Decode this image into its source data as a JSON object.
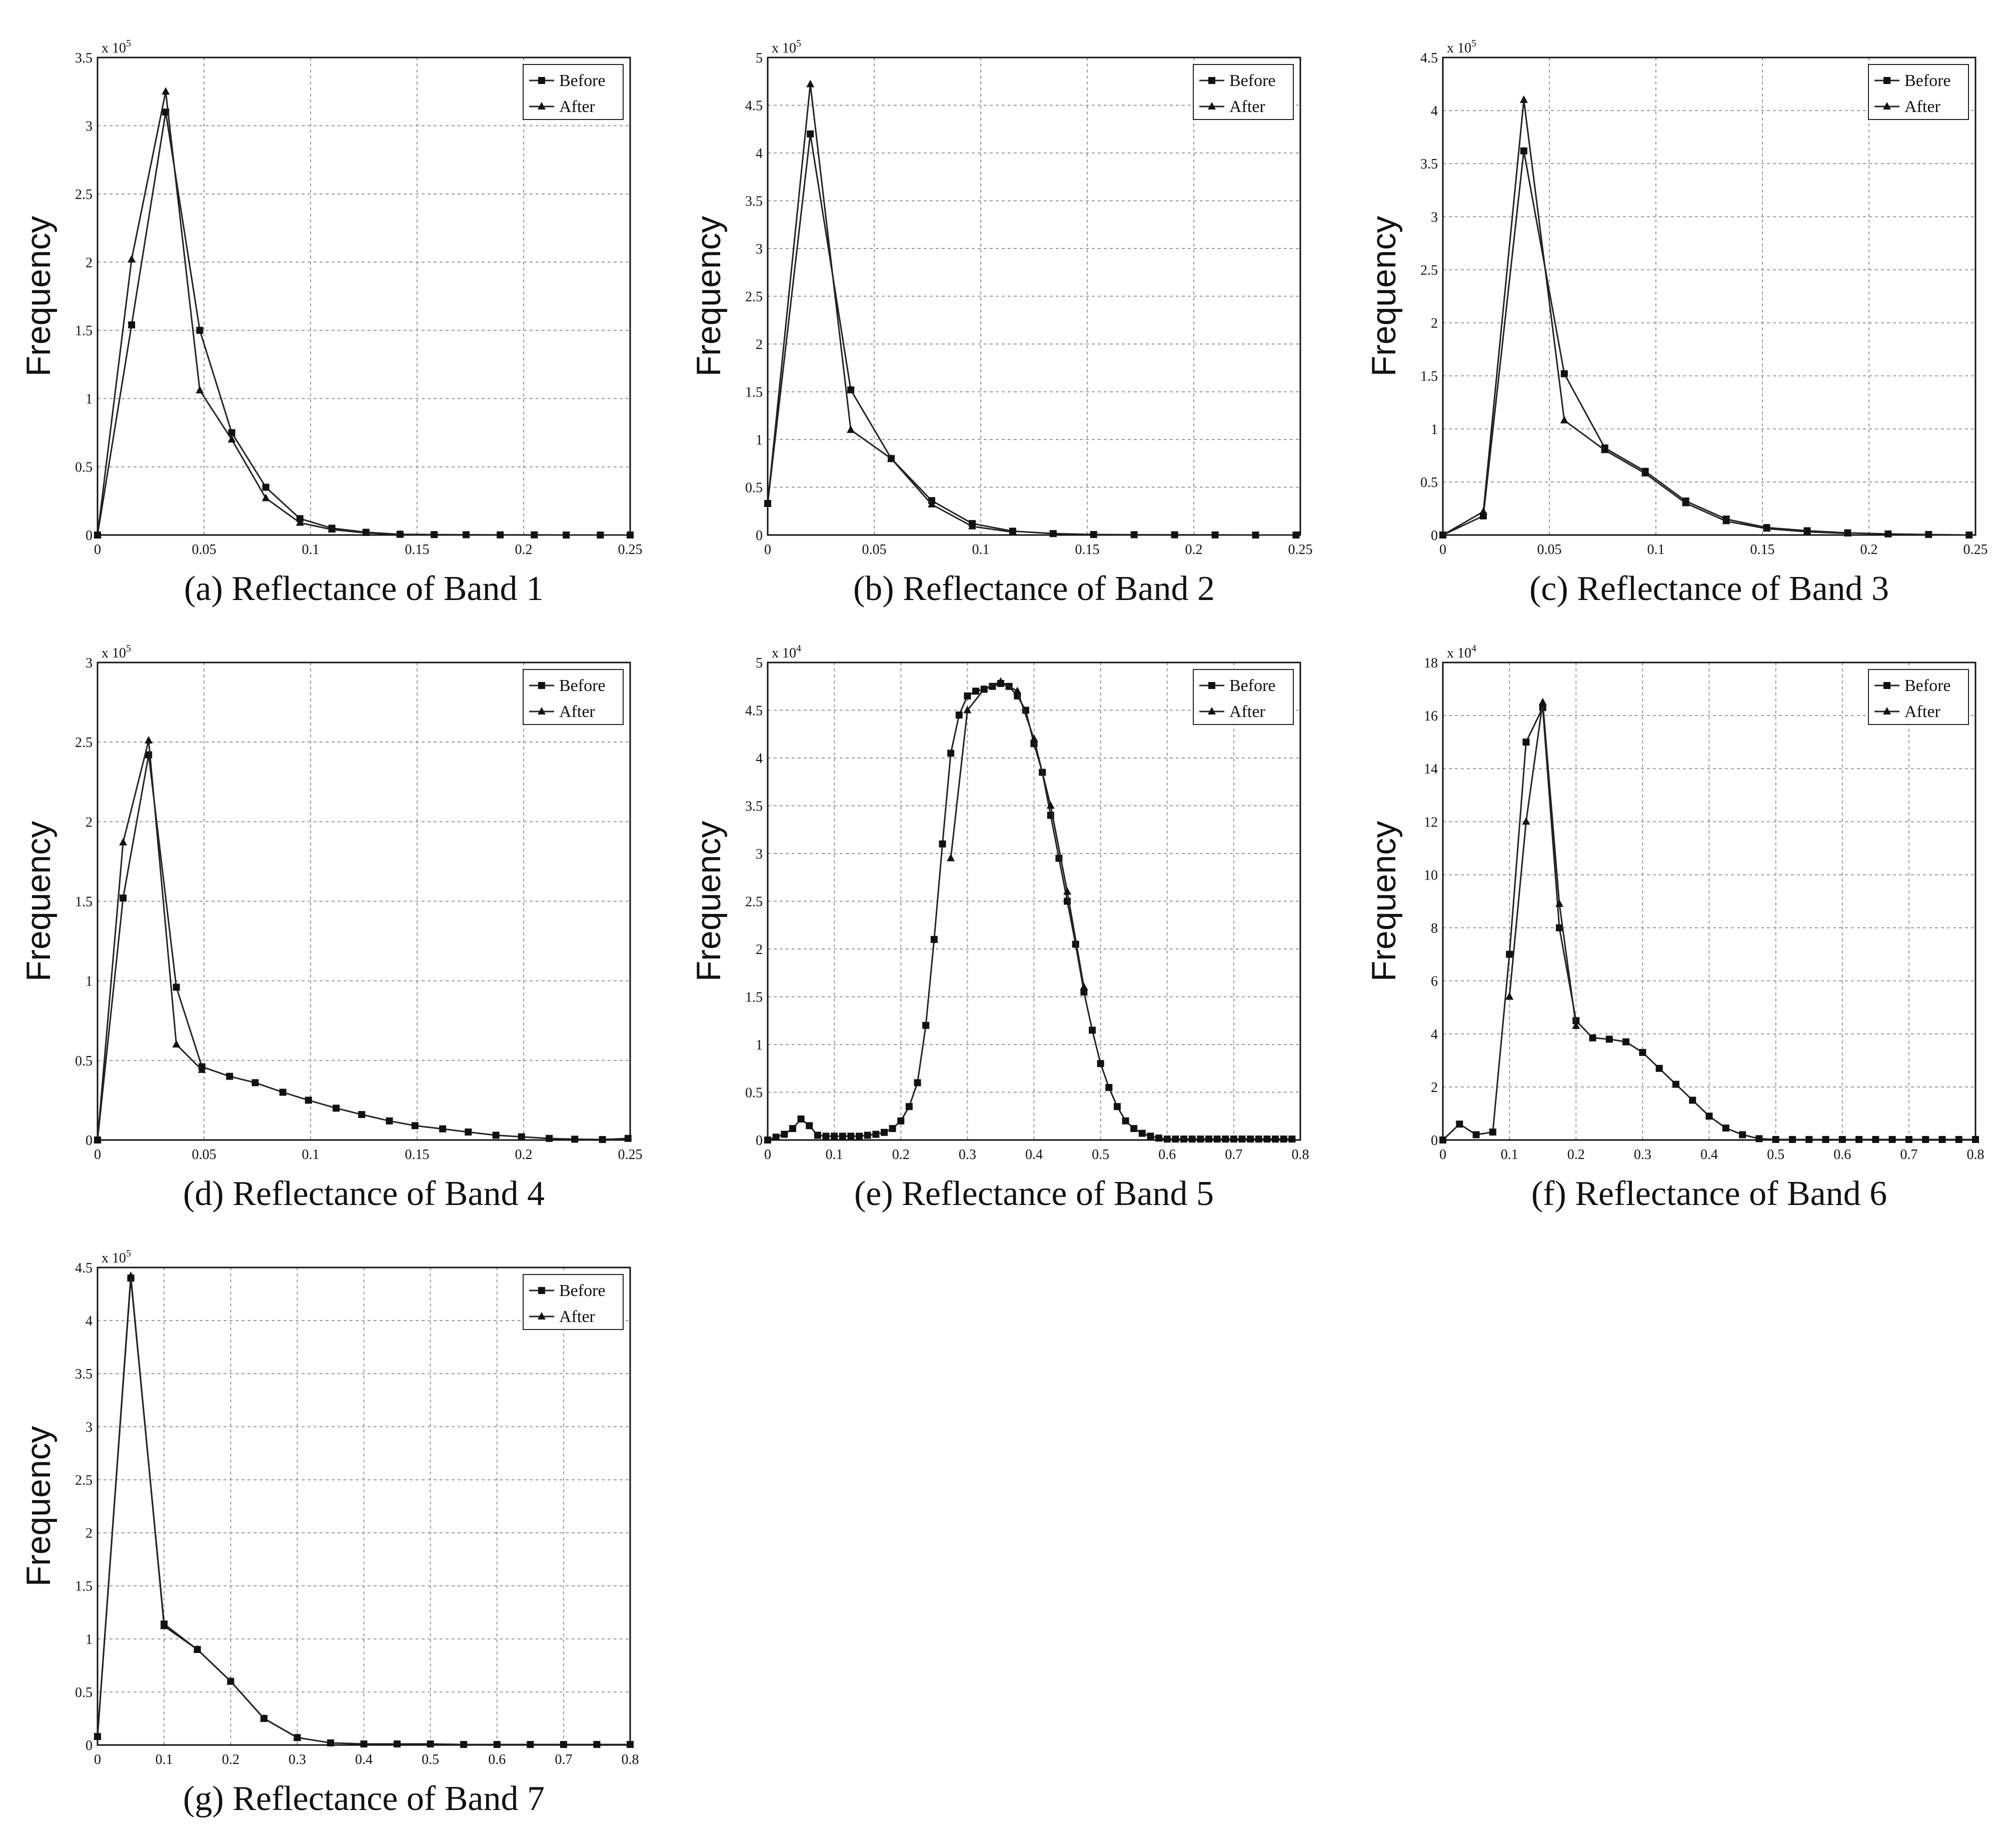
{
  "chart_data": [
    {
      "id": "band1",
      "type": "line",
      "caption": "(a) Reflectance of  Band 1",
      "ylabel": "Frequency",
      "exponent": "5",
      "xlim": [
        0,
        0.25
      ],
      "ylim": [
        0,
        3.5
      ],
      "xticks": [
        0,
        0.05,
        0.1,
        0.15,
        0.2,
        0.25
      ],
      "yticks": [
        0,
        0.5,
        1,
        1.5,
        2,
        2.5,
        3,
        3.5
      ],
      "xtick_labels": [
        "0",
        "0.05",
        "0.1",
        "0.15",
        "0.2",
        "0.25"
      ],
      "ytick_labels": [
        "0",
        "0.5",
        "1",
        "1.5",
        "2",
        "2.5",
        "3",
        "3.5"
      ],
      "legend": [
        "Before",
        "After"
      ],
      "legend_position": "top-right",
      "series": [
        {
          "name": "Before",
          "marker": "square",
          "x": [
            0,
            0.016,
            0.032,
            0.048,
            0.063,
            0.079,
            0.095,
            0.11,
            0.126,
            0.142,
            0.158,
            0.173,
            0.189,
            0.205,
            0.22,
            0.236,
            0.25
          ],
          "y": [
            0,
            1.54,
            3.1,
            1.5,
            0.75,
            0.35,
            0.12,
            0.05,
            0.02,
            0.005,
            0.003,
            0.002,
            0.001,
            0.001,
            0,
            0,
            0
          ]
        },
        {
          "name": "After",
          "marker": "triangle",
          "x": [
            0,
            0.016,
            0.032,
            0.048,
            0.063,
            0.079,
            0.095,
            0.11,
            0.126,
            0.142
          ],
          "y": [
            0,
            2.02,
            3.25,
            1.06,
            0.7,
            0.27,
            0.09,
            0.04,
            0.015,
            0.005
          ]
        }
      ]
    },
    {
      "id": "band2",
      "type": "line",
      "caption": "(b) Reflectance of  Band 2",
      "ylabel": "Frequency",
      "exponent": "5",
      "xlim": [
        0,
        0.25
      ],
      "ylim": [
        0,
        5
      ],
      "xticks": [
        0,
        0.05,
        0.1,
        0.15,
        0.2,
        0.25
      ],
      "yticks": [
        0,
        0.5,
        1,
        1.5,
        2,
        2.5,
        3,
        3.5,
        4,
        4.5,
        5
      ],
      "xtick_labels": [
        "0",
        "0.05",
        "0.1",
        "0.15",
        "0.2",
        "0.25"
      ],
      "ytick_labels": [
        "0",
        "0.5",
        "1",
        "1.5",
        "2",
        "2.5",
        "3",
        "3.5",
        "4",
        "4.5",
        "5"
      ],
      "legend": [
        "Before",
        "After"
      ],
      "legend_position": "top-right",
      "series": [
        {
          "name": "Before",
          "marker": "square",
          "x": [
            0,
            0.02,
            0.039,
            0.058,
            0.077,
            0.096,
            0.115,
            0.134,
            0.153,
            0.172,
            0.191,
            0.21,
            0.229,
            0.248
          ],
          "y": [
            0.33,
            4.2,
            1.52,
            0.8,
            0.36,
            0.12,
            0.04,
            0.015,
            0.005,
            0.003,
            0.002,
            0.001,
            0,
            0
          ]
        },
        {
          "name": "After",
          "marker": "triangle",
          "x": [
            0,
            0.02,
            0.039,
            0.058,
            0.077,
            0.096,
            0.115
          ],
          "y": [
            0.33,
            4.72,
            1.1,
            0.8,
            0.32,
            0.09,
            0.03
          ]
        }
      ]
    },
    {
      "id": "band3",
      "type": "line",
      "caption": "(c) Reflectance of  Band 3",
      "ylabel": "Frequency",
      "exponent": "5",
      "xlim": [
        0,
        0.25
      ],
      "ylim": [
        0,
        4.5
      ],
      "xticks": [
        0,
        0.05,
        0.1,
        0.15,
        0.2,
        0.25
      ],
      "yticks": [
        0,
        0.5,
        1,
        1.5,
        2,
        2.5,
        3,
        3.5,
        4,
        4.5
      ],
      "xtick_labels": [
        "0",
        "0.05",
        "0.1",
        "0.15",
        "0.2",
        "0.25"
      ],
      "ytick_labels": [
        "0",
        "0.5",
        "1",
        "1.5",
        "2",
        "2.5",
        "3",
        "3.5",
        "4",
        "4.5"
      ],
      "legend": [
        "Before",
        "After"
      ],
      "legend_position": "top-right",
      "series": [
        {
          "name": "Before",
          "marker": "square",
          "x": [
            0,
            0.019,
            0.038,
            0.057,
            0.076,
            0.095,
            0.114,
            0.133,
            0.152,
            0.171,
            0.19,
            0.209,
            0.228,
            0.247
          ],
          "y": [
            0,
            0.18,
            3.62,
            1.52,
            0.82,
            0.6,
            0.32,
            0.15,
            0.07,
            0.04,
            0.02,
            0.01,
            0.005,
            0
          ]
        },
        {
          "name": "After",
          "marker": "triangle",
          "x": [
            0,
            0.019,
            0.038,
            0.057,
            0.076,
            0.095,
            0.114,
            0.133,
            0.152,
            0.171,
            0.19
          ],
          "y": [
            0,
            0.22,
            4.1,
            1.08,
            0.8,
            0.58,
            0.3,
            0.13,
            0.06,
            0.03,
            0.015
          ]
        }
      ]
    },
    {
      "id": "band4",
      "type": "line",
      "caption": "(d) Reflectance of  Band 4",
      "ylabel": "Frequency",
      "exponent": "5",
      "xlim": [
        0,
        0.25
      ],
      "ylim": [
        0,
        3
      ],
      "xticks": [
        0,
        0.05,
        0.1,
        0.15,
        0.2,
        0.25
      ],
      "yticks": [
        0,
        0.5,
        1,
        1.5,
        2,
        2.5,
        3
      ],
      "xtick_labels": [
        "0",
        "0.05",
        "0.1",
        "0.15",
        "0.2",
        "0.25"
      ],
      "ytick_labels": [
        "0",
        "0.5",
        "1",
        "1.5",
        "2",
        "2.5",
        "3"
      ],
      "legend": [
        "Before",
        "After"
      ],
      "legend_position": "top-right",
      "series": [
        {
          "name": "Before",
          "marker": "square",
          "x": [
            0,
            0.012,
            0.024,
            0.037,
            0.049,
            0.062,
            0.074,
            0.087,
            0.099,
            0.112,
            0.124,
            0.137,
            0.149,
            0.162,
            0.174,
            0.187,
            0.199,
            0.212,
            0.224,
            0.237,
            0.249
          ],
          "y": [
            0,
            1.52,
            2.42,
            0.96,
            0.46,
            0.4,
            0.36,
            0.3,
            0.25,
            0.2,
            0.16,
            0.12,
            0.09,
            0.07,
            0.05,
            0.03,
            0.02,
            0.01,
            0.005,
            0.003,
            0.01
          ]
        },
        {
          "name": "After",
          "marker": "triangle",
          "x": [
            0,
            0.012,
            0.024,
            0.037,
            0.049
          ],
          "y": [
            0,
            1.87,
            2.51,
            0.6,
            0.44
          ]
        }
      ]
    },
    {
      "id": "band5",
      "type": "line",
      "caption": "(e) Reflectance of  Band 5",
      "ylabel": "Frequency",
      "exponent": "4",
      "xlim": [
        0,
        0.8
      ],
      "ylim": [
        0,
        5
      ],
      "xticks": [
        0,
        0.1,
        0.2,
        0.3,
        0.4,
        0.5,
        0.6,
        0.7,
        0.8
      ],
      "yticks": [
        0,
        0.5,
        1,
        1.5,
        2,
        2.5,
        3,
        3.5,
        4,
        4.5,
        5
      ],
      "xtick_labels": [
        "0",
        "0.1",
        "0.2",
        "0.3",
        "0.4",
        "0.5",
        "0.6",
        "0.7",
        "0.8"
      ],
      "ytick_labels": [
        "0",
        "0.5",
        "1",
        "1.5",
        "2",
        "2.5",
        "3",
        "3.5",
        "4",
        "4.5",
        "5"
      ],
      "legend": [
        "Before",
        "After"
      ],
      "legend_position": "top-right",
      "series": [
        {
          "name": "Before",
          "marker": "square",
          "x": [
            0,
            0.0125,
            0.025,
            0.0375,
            0.05,
            0.0625,
            0.075,
            0.0875,
            0.1,
            0.1125,
            0.125,
            0.1375,
            0.15,
            0.1625,
            0.175,
            0.1875,
            0.2,
            0.2125,
            0.225,
            0.2375,
            0.25,
            0.2625,
            0.275,
            0.2875,
            0.3,
            0.3125,
            0.325,
            0.3375,
            0.35,
            0.3625,
            0.375,
            0.3875,
            0.4,
            0.4125,
            0.425,
            0.4375,
            0.45,
            0.4625,
            0.475,
            0.4875,
            0.5,
            0.5125,
            0.525,
            0.5375,
            0.55,
            0.5625,
            0.575,
            0.5875,
            0.6,
            0.6125,
            0.625,
            0.6375,
            0.65,
            0.6625,
            0.675,
            0.6875,
            0.7,
            0.7125,
            0.725,
            0.7375,
            0.75,
            0.7625,
            0.775,
            0.7875
          ],
          "y": [
            0,
            0.03,
            0.06,
            0.12,
            0.22,
            0.15,
            0.05,
            0.04,
            0.04,
            0.04,
            0.04,
            0.04,
            0.05,
            0.06,
            0.08,
            0.12,
            0.2,
            0.35,
            0.6,
            1.2,
            2.1,
            3.1,
            4.05,
            4.45,
            4.65,
            4.7,
            4.72,
            4.75,
            4.78,
            4.75,
            4.65,
            4.5,
            4.15,
            3.85,
            3.4,
            2.95,
            2.5,
            2.05,
            1.55,
            1.15,
            0.8,
            0.55,
            0.35,
            0.2,
            0.12,
            0.07,
            0.04,
            0.02,
            0.01,
            0.01,
            0.01,
            0.01,
            0.01,
            0.01,
            0.01,
            0.01,
            0.01,
            0.01,
            0.01,
            0.01,
            0.01,
            0.01,
            0.01,
            0.01
          ]
        },
        {
          "name": "After",
          "marker": "triangle",
          "x": [
            0.275,
            0.3,
            0.325,
            0.35,
            0.375,
            0.4,
            0.425,
            0.45,
            0.475
          ],
          "y": [
            2.95,
            4.5,
            4.72,
            4.8,
            4.7,
            4.2,
            3.5,
            2.6,
            1.6
          ]
        }
      ]
    },
    {
      "id": "band6",
      "type": "line",
      "caption": "(f) Reflectance of  Band 6",
      "ylabel": "Frequency",
      "exponent": "4",
      "xlim": [
        0,
        0.8
      ],
      "ylim": [
        0,
        18
      ],
      "xticks": [
        0,
        0.1,
        0.2,
        0.3,
        0.4,
        0.5,
        0.6,
        0.7,
        0.8
      ],
      "yticks": [
        0,
        2,
        4,
        6,
        8,
        10,
        12,
        14,
        16,
        18
      ],
      "xtick_labels": [
        "0",
        "0.1",
        "0.2",
        "0.3",
        "0.4",
        "0.5",
        "0.6",
        "0.7",
        "0.8"
      ],
      "ytick_labels": [
        "0",
        "2",
        "4",
        "6",
        "8",
        "10",
        "12",
        "14",
        "16",
        "18"
      ],
      "legend": [
        "Before",
        "After"
      ],
      "legend_position": "top-right",
      "series": [
        {
          "name": "Before",
          "marker": "square",
          "x": [
            0,
            0.025,
            0.05,
            0.075,
            0.1,
            0.125,
            0.15,
            0.175,
            0.2,
            0.225,
            0.25,
            0.275,
            0.3,
            0.325,
            0.35,
            0.375,
            0.4,
            0.425,
            0.45,
            0.475,
            0.5,
            0.525,
            0.55,
            0.575,
            0.6,
            0.625,
            0.65,
            0.675,
            0.7,
            0.725,
            0.75,
            0.775,
            0.8
          ],
          "y": [
            0,
            0.6,
            0.2,
            0.3,
            7.0,
            15.0,
            16.3,
            8.0,
            4.5,
            3.85,
            3.8,
            3.7,
            3.3,
            2.7,
            2.1,
            1.5,
            0.9,
            0.45,
            0.2,
            0.05,
            0.02,
            0.02,
            0.02,
            0.02,
            0.02,
            0.02,
            0.02,
            0.02,
            0.02,
            0.02,
            0.02,
            0.02,
            0.02
          ]
        },
        {
          "name": "After",
          "marker": "triangle",
          "x": [
            0.1,
            0.125,
            0.15,
            0.175,
            0.2
          ],
          "y": [
            5.4,
            12.0,
            16.5,
            8.9,
            4.3
          ]
        }
      ]
    },
    {
      "id": "band7",
      "type": "line",
      "caption": "(g) Reflectance of  Band 7",
      "ylabel": "Frequency",
      "exponent": "5",
      "xlim": [
        0,
        0.8
      ],
      "ylim": [
        0,
        4.5
      ],
      "xticks": [
        0,
        0.1,
        0.2,
        0.3,
        0.4,
        0.5,
        0.6,
        0.7,
        0.8
      ],
      "yticks": [
        0,
        0.5,
        1,
        1.5,
        2,
        2.5,
        3,
        3.5,
        4,
        4.5
      ],
      "xtick_labels": [
        "0",
        "0.1",
        "0.2",
        "0.3",
        "0.4",
        "0.5",
        "0.6",
        "0.7",
        "0.8"
      ],
      "ytick_labels": [
        "0",
        "0.5",
        "1",
        "1.5",
        "2",
        "2.5",
        "3",
        "3.5",
        "4",
        "4.5"
      ],
      "legend": [
        "Before",
        "After"
      ],
      "legend_position": "top-right",
      "series": [
        {
          "name": "Before",
          "marker": "square",
          "x": [
            0,
            0.05,
            0.1,
            0.15,
            0.2,
            0.25,
            0.3,
            0.35,
            0.4,
            0.45,
            0.5,
            0.55,
            0.6,
            0.65,
            0.7,
            0.75,
            0.8
          ],
          "y": [
            0.08,
            4.4,
            1.14,
            0.9,
            0.6,
            0.25,
            0.07,
            0.02,
            0.01,
            0.01,
            0.01,
            0.005,
            0.005,
            0.005,
            0.005,
            0.005,
            0.005
          ]
        },
        {
          "name": "After",
          "marker": "triangle",
          "x": [
            0,
            0.05,
            0.1,
            0.15,
            0.2,
            0.25,
            0.3
          ],
          "y": [
            0.08,
            4.42,
            1.12,
            0.9,
            0.6,
            0.25,
            0.07
          ]
        }
      ]
    }
  ]
}
